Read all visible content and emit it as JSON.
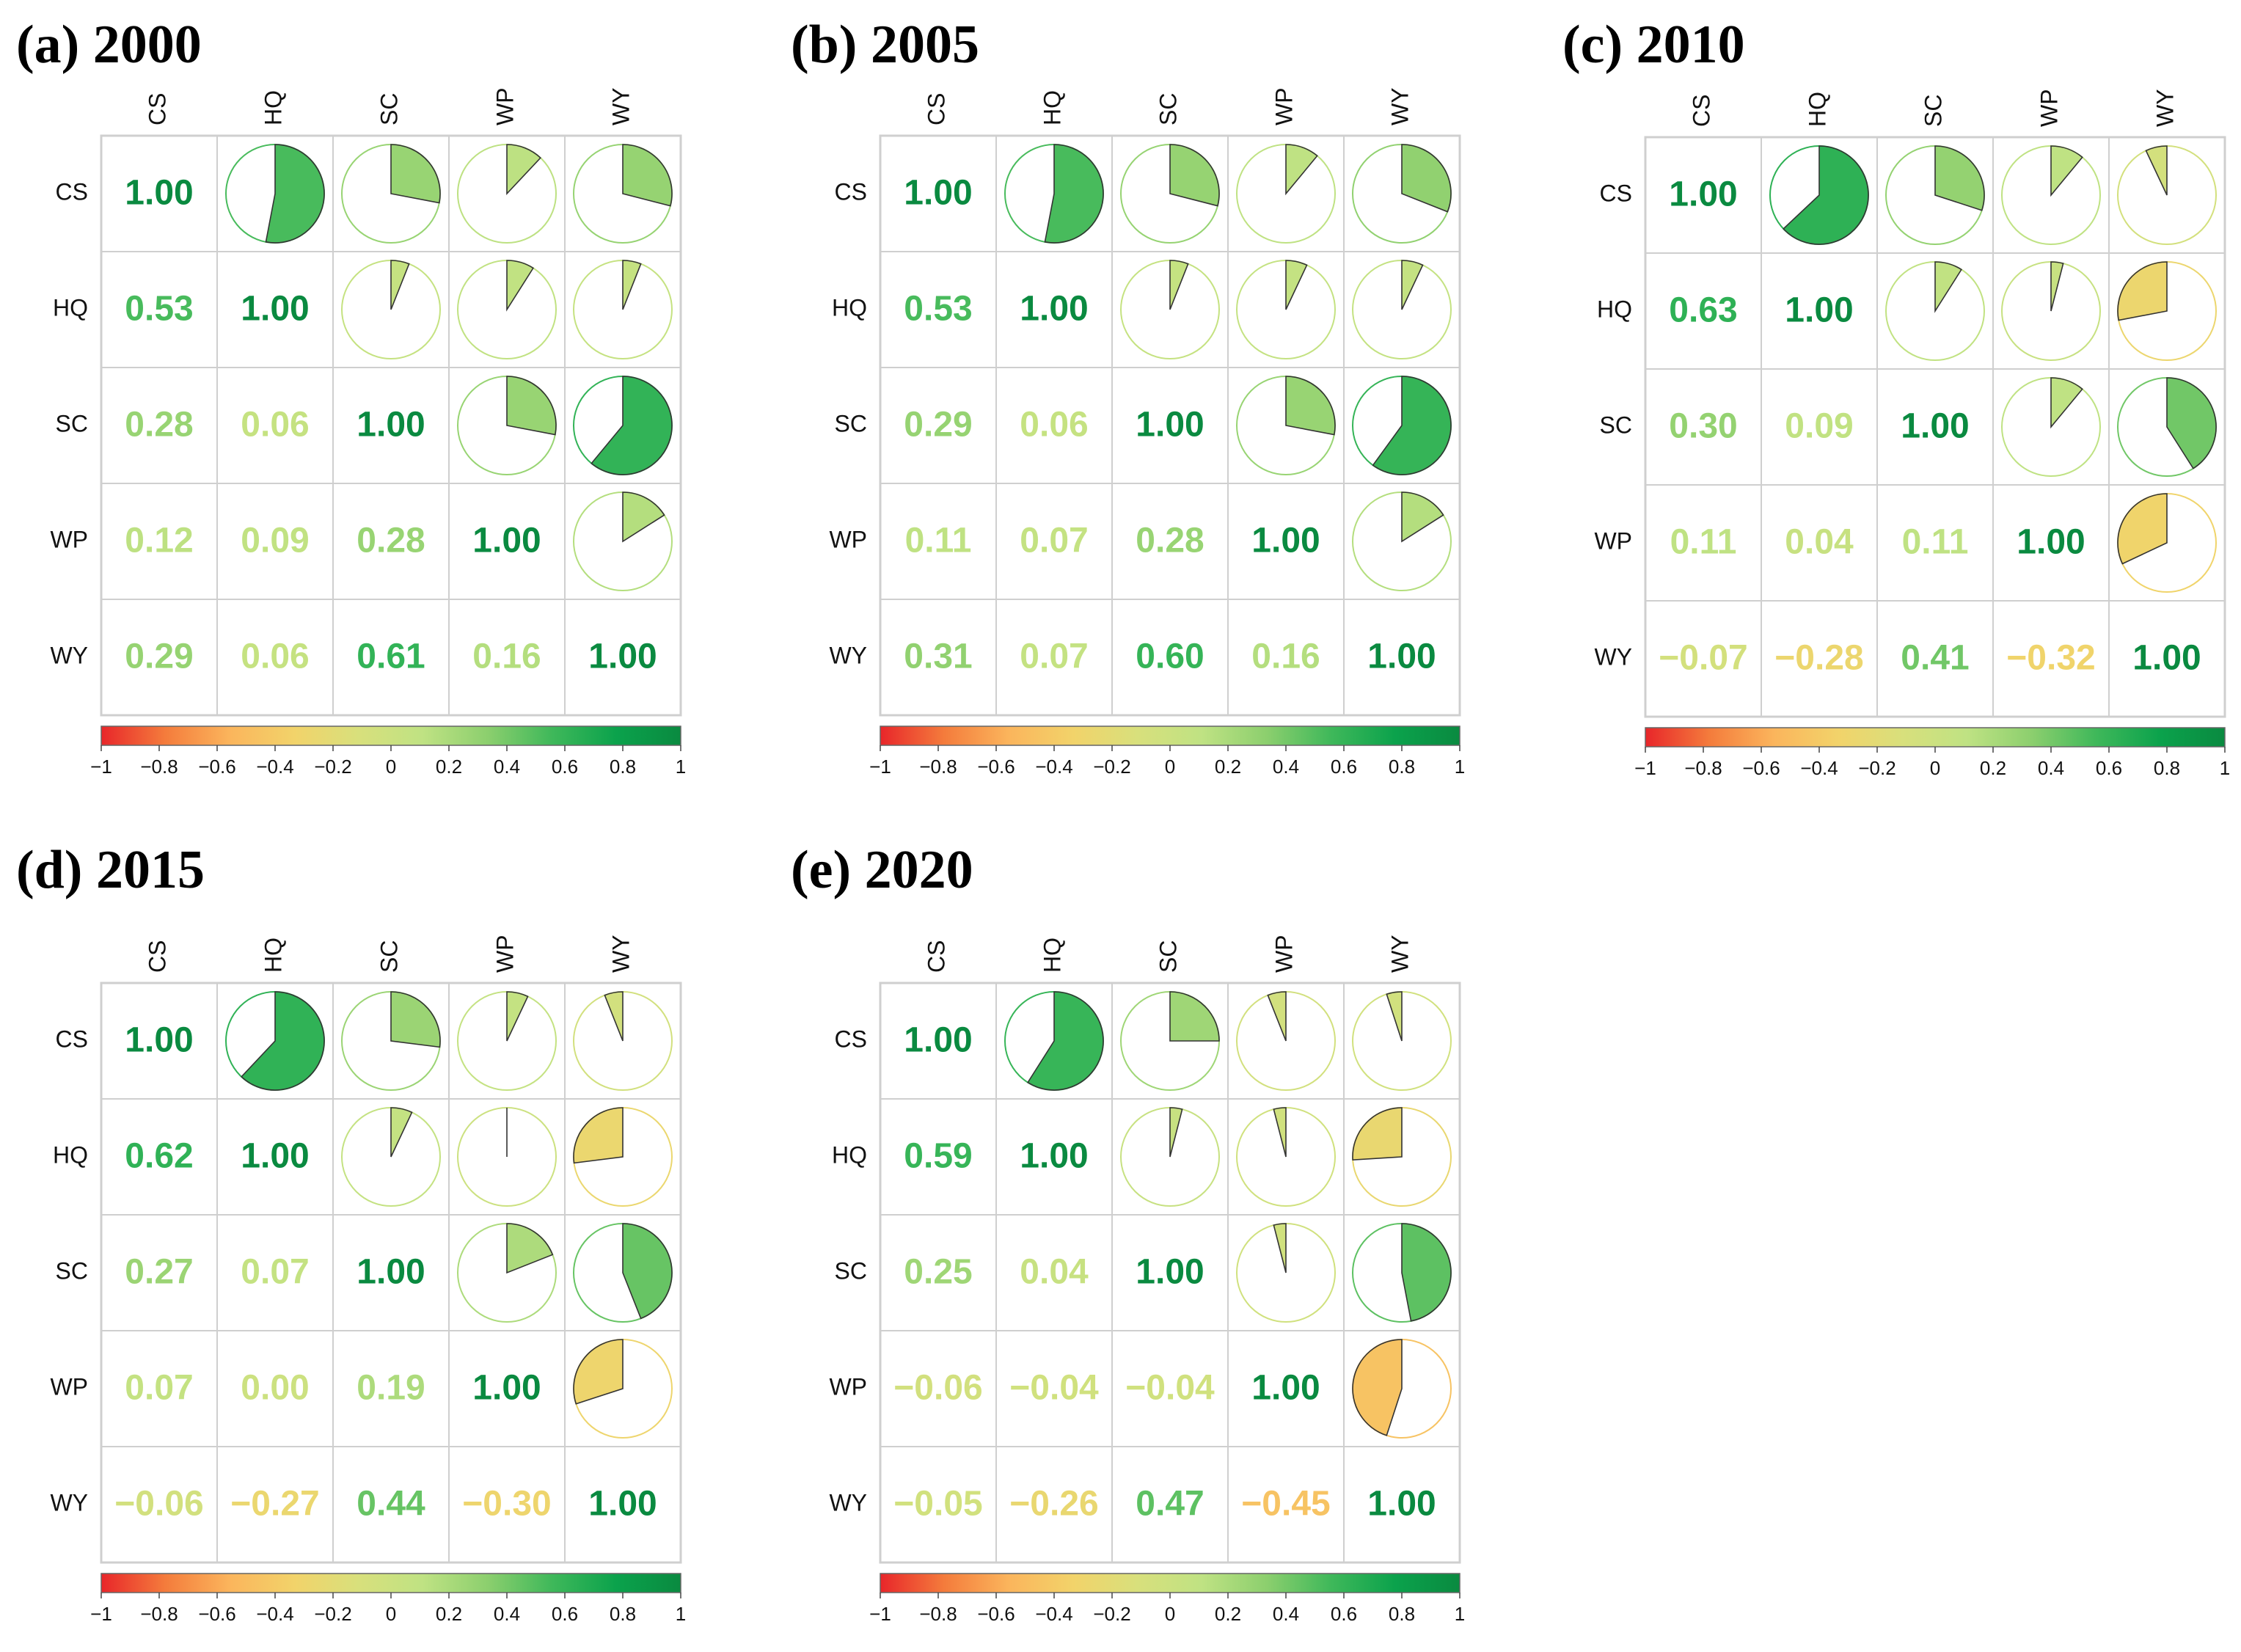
{
  "chart_data": [
    {
      "type": "heatmap",
      "title": "(a) 2000",
      "variables": [
        "CS",
        "HQ",
        "SC",
        "WP",
        "WY"
      ],
      "matrix": [
        [
          1.0,
          0.53,
          0.28,
          0.12,
          0.29
        ],
        [
          0.53,
          1.0,
          0.06,
          0.09,
          0.06
        ],
        [
          0.28,
          0.06,
          1.0,
          0.28,
          0.61
        ],
        [
          0.12,
          0.09,
          0.28,
          1.0,
          0.16
        ],
        [
          0.29,
          0.06,
          0.61,
          0.16,
          1.0
        ]
      ],
      "lower": "number",
      "upper": "pie",
      "colorbar": {
        "range": [
          -1,
          1
        ],
        "ticks": [
          "−1",
          "−0.8",
          "−0.6",
          "−0.4",
          "−0.2",
          "0",
          "0.2",
          "0.4",
          "0.6",
          "0.8",
          "1"
        ]
      }
    },
    {
      "type": "heatmap",
      "title": "(b) 2005",
      "variables": [
        "CS",
        "HQ",
        "SC",
        "WP",
        "WY"
      ],
      "matrix": [
        [
          1.0,
          0.53,
          0.29,
          0.11,
          0.31
        ],
        [
          0.53,
          1.0,
          0.06,
          0.07,
          0.07
        ],
        [
          0.29,
          0.06,
          1.0,
          0.28,
          0.6
        ],
        [
          0.11,
          0.07,
          0.28,
          1.0,
          0.16
        ],
        [
          0.31,
          0.07,
          0.6,
          0.16,
          1.0
        ]
      ],
      "lower": "number",
      "upper": "pie",
      "colorbar": {
        "range": [
          -1,
          1
        ],
        "ticks": [
          "−1",
          "−0.8",
          "−0.6",
          "−0.4",
          "−0.2",
          "0",
          "0.2",
          "0.4",
          "0.6",
          "0.8",
          "1"
        ]
      }
    },
    {
      "type": "heatmap",
      "title": "(c) 2010",
      "variables": [
        "CS",
        "HQ",
        "SC",
        "WP",
        "WY"
      ],
      "matrix": [
        [
          1.0,
          0.63,
          0.3,
          0.11,
          -0.07
        ],
        [
          0.63,
          1.0,
          0.09,
          0.04,
          -0.28
        ],
        [
          0.3,
          0.09,
          1.0,
          0.11,
          0.41
        ],
        [
          0.11,
          0.04,
          0.11,
          1.0,
          -0.32
        ],
        [
          -0.07,
          -0.28,
          0.41,
          -0.32,
          1.0
        ]
      ],
      "lower": "number",
      "upper": "pie",
      "colorbar": {
        "range": [
          -1,
          1
        ],
        "ticks": [
          "−1",
          "−0.8",
          "−0.6",
          "−0.4",
          "−0.2",
          "0",
          "0.2",
          "0.4",
          "0.6",
          "0.8",
          "1"
        ]
      }
    },
    {
      "type": "heatmap",
      "title": "(d) 2015",
      "variables": [
        "CS",
        "HQ",
        "SC",
        "WP",
        "WY"
      ],
      "matrix": [
        [
          1.0,
          0.62,
          0.27,
          0.07,
          -0.06
        ],
        [
          0.62,
          1.0,
          0.07,
          0.0,
          -0.27
        ],
        [
          0.27,
          0.07,
          1.0,
          0.19,
          0.44
        ],
        [
          0.07,
          0.0,
          0.19,
          1.0,
          -0.3
        ],
        [
          -0.06,
          -0.27,
          0.44,
          -0.3,
          1.0
        ]
      ],
      "lower": "number",
      "upper": "pie",
      "colorbar": {
        "range": [
          -1,
          1
        ],
        "ticks": [
          "−1",
          "−0.8",
          "−0.6",
          "−0.4",
          "−0.2",
          "0",
          "0.2",
          "0.4",
          "0.6",
          "0.8",
          "1"
        ]
      }
    },
    {
      "type": "heatmap",
      "title": "(e) 2020",
      "variables": [
        "CS",
        "HQ",
        "SC",
        "WP",
        "WY"
      ],
      "matrix": [
        [
          1.0,
          0.59,
          0.25,
          -0.06,
          -0.05
        ],
        [
          0.59,
          1.0,
          0.04,
          -0.04,
          -0.26
        ],
        [
          0.25,
          0.04,
          1.0,
          -0.04,
          0.47
        ],
        [
          -0.06,
          -0.04,
          -0.04,
          1.0,
          -0.45
        ],
        [
          -0.05,
          -0.26,
          0.47,
          -0.45,
          1.0
        ]
      ],
      "lower": "number",
      "upper": "pie",
      "colorbar": {
        "range": [
          -1,
          1
        ],
        "ticks": [
          "−1",
          "−0.8",
          "−0.6",
          "−0.4",
          "−0.2",
          "0",
          "0.2",
          "0.4",
          "0.6",
          "0.8",
          "1"
        ]
      }
    }
  ],
  "colors": {
    "scale": [
      "#e8262a",
      "#f47c3c",
      "#fbb55c",
      "#f2d36a",
      "#d8e07c",
      "#bfe283",
      "#8ccf6e",
      "#3fb85a",
      "#0ba24c",
      "#0a8a40"
    ],
    "grid": "#cfcfcf"
  }
}
